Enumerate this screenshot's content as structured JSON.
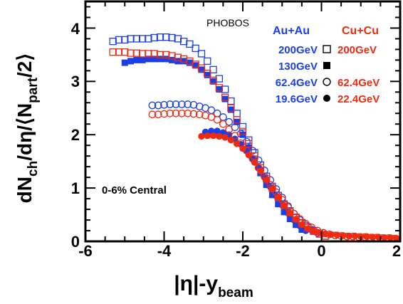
{
  "chart_data": {
    "type": "scatter",
    "xlim": [
      -6,
      2
    ],
    "ylim": [
      0,
      4.5
    ],
    "x_ticks": [
      "-6",
      "-4",
      "-2",
      "0",
      "2"
    ],
    "y_ticks": [
      "0",
      "1",
      "2",
      "3",
      "4"
    ],
    "ylabel": "dN_ch/dη/⟨N_part/2⟩",
    "xlabel": "|η|-y_beam",
    "annotations": {
      "experiment": "PHOBOS",
      "centrality": "0-6% Central"
    },
    "legend": {
      "au_header": "Au+Au",
      "cu_header": "Cu+Cu",
      "au_entries": [
        "200GeV",
        "130GeV",
        "62.4GeV",
        "19.6GeV"
      ],
      "cu_entries": [
        "200GeV",
        "",
        "62.4GeV",
        "22.4GeV"
      ]
    },
    "colors": {
      "auau": "#1a3fe6",
      "cucu": "#ee2a10",
      "frame": "#000000"
    },
    "series": [
      {
        "name": "Au+Au 200GeV",
        "marker": "open-square",
        "color": "#1a3fe6",
        "points": [
          [
            -5.3,
            3.75
          ],
          [
            -5.15,
            3.78
          ],
          [
            -5.0,
            3.78
          ],
          [
            -4.85,
            3.8
          ],
          [
            -4.7,
            3.8
          ],
          [
            -4.55,
            3.8
          ],
          [
            -4.4,
            3.8
          ],
          [
            -4.25,
            3.82
          ],
          [
            -4.1,
            3.83
          ],
          [
            -3.95,
            3.83
          ],
          [
            -3.8,
            3.82
          ],
          [
            -3.65,
            3.8
          ],
          [
            -3.5,
            3.75
          ],
          [
            -3.35,
            3.7
          ],
          [
            -3.2,
            3.62
          ],
          [
            -3.05,
            3.52
          ],
          [
            -2.9,
            3.38
          ],
          [
            -2.75,
            3.22
          ],
          [
            -2.6,
            3.05
          ],
          [
            -2.45,
            2.85
          ],
          [
            -2.3,
            2.63
          ],
          [
            -2.15,
            2.4
          ],
          [
            -2.0,
            2.15
          ],
          [
            -1.85,
            1.9
          ],
          [
            -1.7,
            1.66
          ],
          [
            -1.55,
            1.43
          ],
          [
            -1.4,
            1.22
          ],
          [
            -1.25,
            1.03
          ],
          [
            -1.1,
            0.86
          ],
          [
            -0.95,
            0.7
          ],
          [
            -0.8,
            0.57
          ],
          [
            -0.65,
            0.45
          ],
          [
            -0.5,
            0.35
          ],
          [
            -0.35,
            0.27
          ],
          [
            -0.2,
            0.2
          ],
          [
            -0.05,
            0.14
          ],
          [
            0.1,
            0.1
          ]
        ]
      },
      {
        "name": "Au+Au 130GeV",
        "marker": "filled-square",
        "color": "#1a3fe6",
        "points": [
          [
            -5.0,
            3.35
          ],
          [
            -4.85,
            3.38
          ],
          [
            -4.7,
            3.4
          ],
          [
            -4.55,
            3.4
          ],
          [
            -4.4,
            3.42
          ],
          [
            -4.25,
            3.42
          ],
          [
            -4.1,
            3.42
          ],
          [
            -3.95,
            3.42
          ],
          [
            -3.8,
            3.4
          ],
          [
            -3.65,
            3.38
          ],
          [
            -3.5,
            3.38
          ],
          [
            -3.35,
            3.35
          ],
          [
            -3.2,
            3.3
          ],
          [
            -3.05,
            3.22
          ],
          [
            -2.9,
            3.12
          ],
          [
            -2.75,
            3.0
          ],
          [
            -2.6,
            2.85
          ],
          [
            -2.45,
            2.67
          ],
          [
            -2.3,
            2.47
          ],
          [
            -2.15,
            2.24
          ],
          [
            -2.0,
            2.0
          ],
          [
            -1.85,
            1.76
          ],
          [
            -1.7,
            1.52
          ],
          [
            -1.55,
            1.28
          ],
          [
            -1.4,
            1.06
          ],
          [
            -1.25,
            0.87
          ],
          [
            -1.1,
            0.7
          ],
          [
            -0.95,
            0.55
          ],
          [
            -0.8,
            0.42
          ],
          [
            -0.65,
            0.31
          ],
          [
            -0.5,
            0.22
          ]
        ]
      },
      {
        "name": "Au+Au 62.4GeV",
        "marker": "open-circle",
        "color": "#1a3fe6",
        "points": [
          [
            -4.3,
            2.55
          ],
          [
            -4.15,
            2.55
          ],
          [
            -4.0,
            2.56
          ],
          [
            -3.85,
            2.57
          ],
          [
            -3.7,
            2.57
          ],
          [
            -3.55,
            2.57
          ],
          [
            -3.4,
            2.57
          ],
          [
            -3.25,
            2.56
          ],
          [
            -3.1,
            2.53
          ],
          [
            -2.95,
            2.5
          ],
          [
            -2.8,
            2.46
          ],
          [
            -2.65,
            2.4
          ],
          [
            -2.5,
            2.33
          ],
          [
            -2.35,
            2.24
          ],
          [
            -2.2,
            2.14
          ],
          [
            -2.05,
            2.02
          ],
          [
            -1.9,
            1.87
          ],
          [
            -1.75,
            1.7
          ],
          [
            -1.6,
            1.52
          ],
          [
            -1.45,
            1.33
          ],
          [
            -1.3,
            1.15
          ],
          [
            -1.15,
            0.98
          ],
          [
            -1.0,
            0.82
          ],
          [
            -0.85,
            0.66
          ],
          [
            -0.7,
            0.52
          ],
          [
            -0.55,
            0.4
          ],
          [
            -0.4,
            0.3
          ],
          [
            -0.25,
            0.22
          ],
          [
            -0.1,
            0.16
          ]
        ]
      },
      {
        "name": "Au+Au 19.6GeV",
        "marker": "filled-circle",
        "color": "#1a3fe6",
        "points": [
          [
            -2.95,
            2.05
          ],
          [
            -2.8,
            2.07
          ],
          [
            -2.65,
            2.07
          ],
          [
            -2.5,
            2.04
          ],
          [
            -2.35,
            2.0
          ],
          [
            -2.2,
            1.92
          ],
          [
            -2.05,
            1.82
          ],
          [
            -1.9,
            1.7
          ],
          [
            -1.75,
            1.55
          ],
          [
            -1.6,
            1.38
          ],
          [
            -1.45,
            1.2
          ],
          [
            -1.3,
            1.02
          ],
          [
            -1.15,
            0.85
          ],
          [
            -1.0,
            0.68
          ],
          [
            -0.85,
            0.53
          ],
          [
            -0.7,
            0.4
          ],
          [
            -0.55,
            0.29
          ],
          [
            -0.4,
            0.2
          ]
        ]
      },
      {
        "name": "Cu+Cu 200GeV",
        "marker": "open-square",
        "color": "#ee2a10",
        "points": [
          [
            -5.3,
            3.55
          ],
          [
            -5.15,
            3.55
          ],
          [
            -5.0,
            3.55
          ],
          [
            -4.85,
            3.53
          ],
          [
            -4.7,
            3.53
          ],
          [
            -4.55,
            3.52
          ],
          [
            -4.4,
            3.52
          ],
          [
            -4.25,
            3.52
          ],
          [
            -4.1,
            3.5
          ],
          [
            -3.95,
            3.5
          ],
          [
            -3.8,
            3.48
          ],
          [
            -3.65,
            3.45
          ],
          [
            -3.5,
            3.42
          ],
          [
            -3.35,
            3.38
          ],
          [
            -3.2,
            3.32
          ],
          [
            -3.05,
            3.25
          ],
          [
            -2.9,
            3.15
          ],
          [
            -2.75,
            3.02
          ],
          [
            -2.6,
            2.88
          ],
          [
            -2.45,
            2.7
          ],
          [
            -2.3,
            2.5
          ],
          [
            -2.15,
            2.28
          ],
          [
            -2.0,
            2.06
          ],
          [
            -1.85,
            1.83
          ],
          [
            -1.7,
            1.6
          ],
          [
            -1.55,
            1.38
          ],
          [
            -1.4,
            1.18
          ],
          [
            -1.25,
            1.0
          ],
          [
            -1.1,
            0.83
          ],
          [
            -0.95,
            0.68
          ],
          [
            -0.8,
            0.55
          ],
          [
            -0.65,
            0.44
          ],
          [
            -0.5,
            0.34
          ],
          [
            -0.35,
            0.26
          ],
          [
            -0.2,
            0.19
          ],
          [
            -0.05,
            0.14
          ],
          [
            0.1,
            0.1
          ]
        ]
      },
      {
        "name": "Cu+Cu 62.4GeV",
        "marker": "open-circle",
        "color": "#ee2a10",
        "points": [
          [
            -4.3,
            2.38
          ],
          [
            -4.15,
            2.38
          ],
          [
            -4.0,
            2.39
          ],
          [
            -3.85,
            2.4
          ],
          [
            -3.7,
            2.4
          ],
          [
            -3.55,
            2.4
          ],
          [
            -3.4,
            2.4
          ],
          [
            -3.25,
            2.39
          ],
          [
            -3.1,
            2.38
          ],
          [
            -2.95,
            2.36
          ],
          [
            -2.8,
            2.33
          ],
          [
            -2.65,
            2.28
          ],
          [
            -2.5,
            2.2
          ],
          [
            -2.35,
            2.1
          ],
          [
            -2.2,
            1.98
          ],
          [
            -2.05,
            1.84
          ],
          [
            -1.9,
            1.7
          ],
          [
            -1.75,
            1.55
          ],
          [
            -1.6,
            1.38
          ],
          [
            -1.45,
            1.22
          ],
          [
            -1.3,
            1.06
          ],
          [
            -1.15,
            0.92
          ],
          [
            -1.0,
            0.78
          ],
          [
            -0.85,
            0.64
          ],
          [
            -0.7,
            0.52
          ],
          [
            -0.55,
            0.42
          ],
          [
            -0.4,
            0.33
          ],
          [
            -0.25,
            0.26
          ],
          [
            -0.1,
            0.2
          ],
          [
            0.05,
            0.16
          ],
          [
            0.2,
            0.13
          ],
          [
            0.35,
            0.11
          ],
          [
            0.5,
            0.1
          ],
          [
            0.65,
            0.09
          ],
          [
            0.8,
            0.09
          ],
          [
            0.95,
            0.08
          ],
          [
            1.1,
            0.08
          ],
          [
            1.25,
            0.07
          ],
          [
            1.4,
            0.07
          ],
          [
            1.55,
            0.06
          ],
          [
            1.7,
            0.06
          ],
          [
            1.85,
            0.05
          ]
        ]
      },
      {
        "name": "Cu+Cu 22.4GeV",
        "marker": "filled-circle",
        "color": "#ee2a10",
        "points": [
          [
            -3.05,
            1.97
          ],
          [
            -2.9,
            1.98
          ],
          [
            -2.75,
            1.98
          ],
          [
            -2.6,
            1.97
          ],
          [
            -2.45,
            1.95
          ],
          [
            -2.3,
            1.9
          ],
          [
            -2.15,
            1.83
          ],
          [
            -2.0,
            1.74
          ],
          [
            -1.85,
            1.62
          ],
          [
            -1.7,
            1.48
          ],
          [
            -1.55,
            1.32
          ],
          [
            -1.4,
            1.15
          ],
          [
            -1.25,
            0.98
          ],
          [
            -1.1,
            0.82
          ],
          [
            -0.95,
            0.67
          ],
          [
            -0.8,
            0.53
          ],
          [
            -0.65,
            0.41
          ],
          [
            -0.5,
            0.31
          ],
          [
            -0.35,
            0.24
          ],
          [
            -0.2,
            0.19
          ],
          [
            -0.05,
            0.16
          ],
          [
            0.1,
            0.14
          ],
          [
            0.25,
            0.13
          ],
          [
            0.4,
            0.12
          ],
          [
            0.55,
            0.11
          ],
          [
            0.7,
            0.1
          ],
          [
            0.85,
            0.1
          ],
          [
            1.0,
            0.09
          ],
          [
            1.15,
            0.09
          ],
          [
            1.3,
            0.08
          ],
          [
            1.45,
            0.08
          ],
          [
            1.6,
            0.07
          ],
          [
            1.75,
            0.07
          ],
          [
            1.9,
            0.06
          ]
        ]
      }
    ]
  }
}
